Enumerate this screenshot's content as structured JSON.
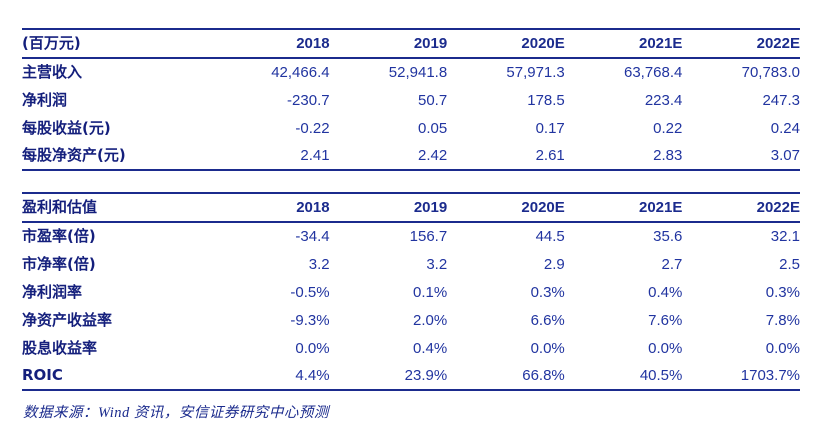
{
  "colors": {
    "rule_navy": "#1b2b8d",
    "label_navy": "#141f7c",
    "number_blue": "#2134a0",
    "background": "#ffffff"
  },
  "table1": {
    "header": [
      "(百万元)",
      "2018",
      "2019",
      "2020E",
      "2021E",
      "2022E"
    ],
    "rows": [
      {
        "label": "主营收入",
        "values": [
          "42,466.4",
          "52,941.8",
          "57,971.3",
          "63,768.4",
          "70,783.0"
        ]
      },
      {
        "label": "净利润",
        "values": [
          "-230.7",
          "50.7",
          "178.5",
          "223.4",
          "247.3"
        ]
      },
      {
        "label": "每股收益(元)",
        "values": [
          "-0.22",
          "0.05",
          "0.17",
          "0.22",
          "0.24"
        ]
      },
      {
        "label": "每股净资产(元)",
        "values": [
          "2.41",
          "2.42",
          "2.61",
          "2.83",
          "3.07"
        ]
      }
    ]
  },
  "table2": {
    "header": [
      "盈利和估值",
      "2018",
      "2019",
      "2020E",
      "2021E",
      "2022E"
    ],
    "rows": [
      {
        "label": "市盈率(倍)",
        "values": [
          "-34.4",
          "156.7",
          "44.5",
          "35.6",
          "32.1"
        ]
      },
      {
        "label": "市净率(倍)",
        "values": [
          "3.2",
          "3.2",
          "2.9",
          "2.7",
          "2.5"
        ]
      },
      {
        "label": "净利润率",
        "values": [
          "-0.5%",
          "0.1%",
          "0.3%",
          "0.4%",
          "0.3%"
        ]
      },
      {
        "label": "净资产收益率",
        "values": [
          "-9.3%",
          "2.0%",
          "6.6%",
          "7.6%",
          "7.8%"
        ]
      },
      {
        "label": "股息收益率",
        "values": [
          "0.0%",
          "0.4%",
          "0.0%",
          "0.0%",
          "0.0%"
        ]
      },
      {
        "label": "ROIC",
        "values": [
          "4.4%",
          "23.9%",
          "66.8%",
          "40.5%",
          "1703.7%"
        ]
      }
    ]
  },
  "footer": {
    "source_note": "数据来源：Wind 资讯，安信证券研究中心预测"
  }
}
